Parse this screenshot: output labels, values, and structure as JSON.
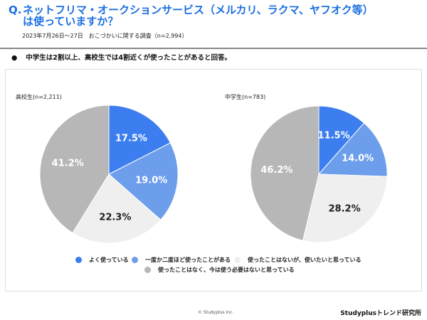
{
  "header": {
    "q": "Q.",
    "title": "ネットフリマ・オークションサービス（メルカリ、ラクマ、ヤフオク等）は使っていますか？",
    "subtitle": "2023年7月26日～27日　おこづかいに関する調査（n=2,994）"
  },
  "summary": "中学生は2割以上、高校生では4割近くが使ったことがあると回答。",
  "chart_data": {
    "type": "pie",
    "legend": [
      "よく使っている",
      "一度か二度ほど使ったことがある",
      "使ったことはないが、使いたいと思っている",
      "使ったことはなく、今は使う必要はないと思っている"
    ],
    "colors": [
      "#3c7ef0",
      "#6d9eeb",
      "#efefef",
      "#b7b7b7"
    ],
    "legend_placement": "bottom",
    "charts": [
      {
        "title": "高校生(n=2,211)",
        "values": [
          17.5,
          19.0,
          22.3,
          41.2
        ],
        "labels": [
          "17.5%",
          "19.0%",
          "22.3%",
          "41.2%"
        ]
      },
      {
        "title": "中学生(n=783)",
        "values": [
          11.5,
          14.0,
          28.2,
          46.2
        ],
        "labels": [
          "11.5%",
          "14.0%",
          "28.2%",
          "46.2%"
        ]
      }
    ]
  },
  "footer": {
    "copyright": "© Studyplus Inc.",
    "brand": "Studyplusトレンド研究所"
  }
}
